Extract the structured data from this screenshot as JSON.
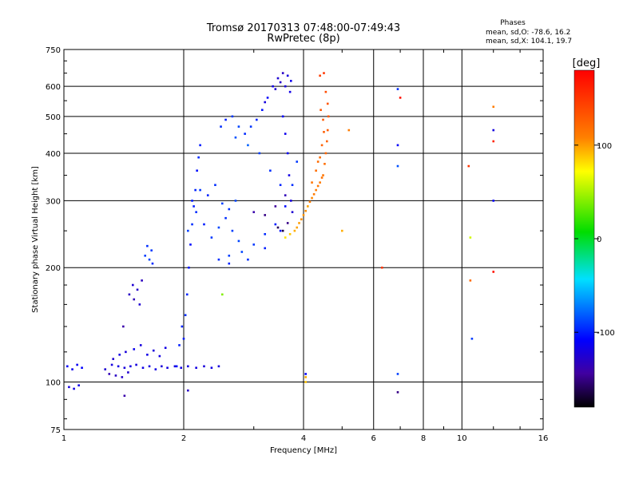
{
  "chart_data": {
    "type": "scatter",
    "title": "Tromsø 20170313 07:48:00-07:49:43",
    "subtitle": "RwPretec (8p)",
    "xlabel": "Frequency [MHz]",
    "ylabel": "Stationary phase Virtual Height [km]",
    "x_scale": "log",
    "y_scale": "log",
    "xlim": [
      1,
      16
    ],
    "ylim": [
      75,
      750
    ],
    "x_ticks": [
      1,
      2,
      4,
      6,
      8,
      10,
      16
    ],
    "y_ticks": [
      75,
      100,
      200,
      300,
      400,
      500,
      600,
      750
    ],
    "grid": true,
    "colorbar": {
      "label": "[deg]",
      "range": [
        -180,
        180
      ],
      "ticks": [
        100,
        0,
        -100
      ]
    },
    "legend": {
      "title": "Phases",
      "lines": [
        "mean, sd,O: -78.6, 16.2",
        "mean, sd,X: 104.1, 19.7"
      ]
    },
    "series": [
      {
        "mode": "O",
        "points": [
          [
            1.02,
            110,
            -110
          ],
          [
            1.05,
            108,
            -115
          ],
          [
            1.08,
            111,
            -112
          ],
          [
            1.11,
            109,
            -108
          ],
          [
            1.03,
            97,
            -120
          ],
          [
            1.06,
            96,
            -118
          ],
          [
            1.09,
            98,
            -116
          ],
          [
            1.27,
            108,
            -125
          ],
          [
            1.32,
            111,
            -120
          ],
          [
            1.37,
            110,
            -118
          ],
          [
            1.42,
            109,
            -122
          ],
          [
            1.47,
            110,
            -119
          ],
          [
            1.52,
            111,
            -121
          ],
          [
            1.58,
            109,
            -117
          ],
          [
            1.64,
            110,
            -120
          ],
          [
            1.7,
            108,
            -118
          ],
          [
            1.76,
            110,
            -123
          ],
          [
            1.82,
            109,
            -119
          ],
          [
            1.9,
            110,
            -121
          ],
          [
            1.97,
            109,
            -118
          ],
          [
            2.05,
            110,
            -120
          ],
          [
            2.15,
            109,
            -119
          ],
          [
            2.25,
            110,
            -122
          ],
          [
            2.35,
            109,
            -118
          ],
          [
            2.45,
            110,
            -121
          ],
          [
            1.33,
            115,
            -125
          ],
          [
            1.38,
            118,
            -118
          ],
          [
            1.43,
            120,
            -122
          ],
          [
            1.5,
            122,
            -115
          ],
          [
            1.56,
            125,
            -120
          ],
          [
            1.62,
            118,
            -117
          ],
          [
            1.68,
            121,
            -121
          ],
          [
            1.74,
            117,
            -119
          ],
          [
            1.8,
            123,
            -118
          ],
          [
            1.35,
            104,
            -130
          ],
          [
            1.4,
            103,
            -128
          ],
          [
            1.3,
            105,
            -135
          ],
          [
            1.45,
            106,
            -126
          ],
          [
            1.41,
            140,
            -140
          ],
          [
            1.46,
            170,
            -130
          ],
          [
            1.49,
            180,
            -125
          ],
          [
            1.53,
            175,
            -128
          ],
          [
            1.57,
            185,
            -132
          ],
          [
            1.6,
            215,
            -90
          ],
          [
            1.62,
            228,
            -95
          ],
          [
            1.64,
            210,
            -88
          ],
          [
            1.66,
            222,
            -92
          ],
          [
            1.67,
            205,
            -96
          ],
          [
            1.5,
            165,
            -135
          ],
          [
            1.55,
            160,
            -125
          ],
          [
            2.0,
            130,
            -100
          ],
          [
            2.02,
            150,
            -95
          ],
          [
            2.04,
            170,
            -98
          ],
          [
            2.06,
            200,
            -102
          ],
          [
            2.08,
            230,
            -105
          ],
          [
            2.1,
            260,
            -95
          ],
          [
            2.12,
            290,
            -100
          ],
          [
            2.14,
            320,
            -98
          ],
          [
            2.16,
            360,
            -104
          ],
          [
            2.18,
            390,
            -96
          ],
          [
            2.2,
            420,
            -100
          ],
          [
            1.92,
            110,
            -105
          ],
          [
            1.95,
            125,
            -100
          ],
          [
            1.98,
            140,
            -98
          ],
          [
            2.05,
            250,
            -90
          ],
          [
            2.15,
            280,
            -95
          ],
          [
            2.25,
            260,
            -100
          ],
          [
            2.35,
            240,
            -92
          ],
          [
            2.45,
            255,
            -88
          ],
          [
            2.55,
            270,
            -95
          ],
          [
            2.65,
            250,
            -90
          ],
          [
            2.75,
            235,
            -88
          ],
          [
            2.1,
            300,
            -100
          ],
          [
            2.2,
            320,
            -92
          ],
          [
            2.3,
            310,
            -98
          ],
          [
            2.4,
            330,
            -95
          ],
          [
            2.5,
            295,
            -90
          ],
          [
            2.6,
            285,
            -94
          ],
          [
            2.7,
            300,
            -88
          ],
          [
            2.45,
            210,
            -95
          ],
          [
            2.6,
            215,
            -90
          ],
          [
            2.8,
            220,
            -88
          ],
          [
            3.0,
            230,
            -92
          ],
          [
            3.2,
            245,
            -96
          ],
          [
            3.4,
            260,
            -100
          ],
          [
            3.6,
            290,
            -105
          ],
          [
            3.75,
            330,
            -95
          ],
          [
            3.85,
            380,
            -92
          ],
          [
            2.6,
            205,
            -98
          ],
          [
            2.9,
            210,
            -95
          ],
          [
            3.2,
            225,
            -100
          ],
          [
            3.5,
            250,
            -104
          ],
          [
            2.48,
            470,
            -95
          ],
          [
            2.55,
            490,
            -100
          ],
          [
            2.65,
            500,
            -92
          ],
          [
            2.75,
            470,
            -88
          ],
          [
            2.85,
            450,
            -96
          ],
          [
            2.95,
            470,
            -93
          ],
          [
            3.05,
            490,
            -98
          ],
          [
            3.15,
            520,
            -104
          ],
          [
            3.25,
            560,
            -110
          ],
          [
            3.35,
            600,
            -118
          ],
          [
            3.45,
            630,
            -125
          ],
          [
            3.55,
            650,
            -130
          ],
          [
            3.65,
            640,
            -120
          ],
          [
            3.72,
            620,
            -115
          ],
          [
            3.2,
            545,
            -120
          ],
          [
            3.4,
            590,
            -125
          ],
          [
            3.5,
            615,
            -128
          ],
          [
            3.6,
            600,
            -122
          ],
          [
            3.7,
            580,
            -118
          ],
          [
            2.7,
            440,
            -85
          ],
          [
            2.9,
            420,
            -80
          ],
          [
            3.1,
            400,
            -90
          ],
          [
            3.3,
            360,
            -95
          ],
          [
            3.5,
            330,
            -98
          ],
          [
            3.55,
            500,
            -110
          ],
          [
            3.6,
            450,
            -115
          ],
          [
            3.65,
            400,
            -112
          ],
          [
            3.68,
            350,
            -118
          ],
          [
            3.72,
            300,
            -120
          ],
          [
            3.75,
            280,
            -125
          ],
          [
            3.0,
            280,
            -140
          ],
          [
            3.2,
            275,
            -150
          ],
          [
            3.4,
            290,
            -145
          ],
          [
            3.6,
            310,
            -135
          ],
          [
            3.45,
            255,
            -160
          ],
          [
            3.55,
            250,
            -165
          ],
          [
            3.65,
            262,
            -150
          ],
          [
            6.9,
            590,
            -95
          ],
          [
            6.9,
            420,
            -110
          ],
          [
            6.9,
            370,
            -85
          ],
          [
            6.9,
            105,
            -90
          ],
          [
            4.05,
            105,
            -110
          ],
          [
            6.9,
            94,
            -150
          ],
          [
            2.05,
            95,
            -130
          ],
          [
            1.42,
            92,
            -140
          ],
          [
            7.0,
            560,
            170
          ],
          [
            10.4,
            370,
            150
          ],
          [
            12.0,
            460,
            -120
          ],
          [
            12.0,
            300,
            -110
          ],
          [
            10.6,
            130,
            -90
          ]
        ]
      },
      {
        "mode": "X",
        "points": [
          [
            3.8,
            250,
            95
          ],
          [
            3.9,
            262,
            100
          ],
          [
            4.0,
            275,
            102
          ],
          [
            4.1,
            290,
            98
          ],
          [
            4.2,
            305,
            106
          ],
          [
            4.3,
            320,
            110
          ],
          [
            4.4,
            335,
            112
          ],
          [
            4.48,
            350,
            115
          ],
          [
            4.52,
            375,
            118
          ],
          [
            4.55,
            400,
            122
          ],
          [
            4.58,
            430,
            125
          ],
          [
            4.6,
            460,
            128
          ],
          [
            4.62,
            500,
            130
          ],
          [
            4.6,
            540,
            133
          ],
          [
            4.55,
            580,
            138
          ],
          [
            3.85,
            255,
            98
          ],
          [
            3.95,
            268,
            103
          ],
          [
            4.05,
            282,
            104
          ],
          [
            4.15,
            298,
            108
          ],
          [
            4.25,
            312,
            111
          ],
          [
            4.35,
            328,
            113
          ],
          [
            4.45,
            345,
            116
          ],
          [
            4.4,
            390,
            120
          ],
          [
            4.45,
            420,
            124
          ],
          [
            4.5,
            455,
            127
          ],
          [
            4.48,
            490,
            129
          ],
          [
            4.42,
            520,
            132
          ],
          [
            4.2,
            335,
            115
          ],
          [
            4.3,
            360,
            118
          ],
          [
            4.35,
            380,
            120
          ],
          [
            4.4,
            640,
            145
          ],
          [
            4.5,
            650,
            150
          ],
          [
            3.6,
            240,
            80
          ],
          [
            3.7,
            245,
            88
          ],
          [
            4.05,
            100,
            90
          ],
          [
            4.05,
            103,
            95
          ],
          [
            5.2,
            460,
            110
          ],
          [
            5.0,
            250,
            95
          ],
          [
            6.3,
            200,
            150
          ],
          [
            12.0,
            530,
            110
          ],
          [
            12.0,
            430,
            160
          ],
          [
            12.0,
            195,
            170
          ],
          [
            10.5,
            240,
            60
          ],
          [
            10.5,
            185,
            120
          ],
          [
            2.5,
            170,
            40
          ]
        ]
      }
    ]
  }
}
